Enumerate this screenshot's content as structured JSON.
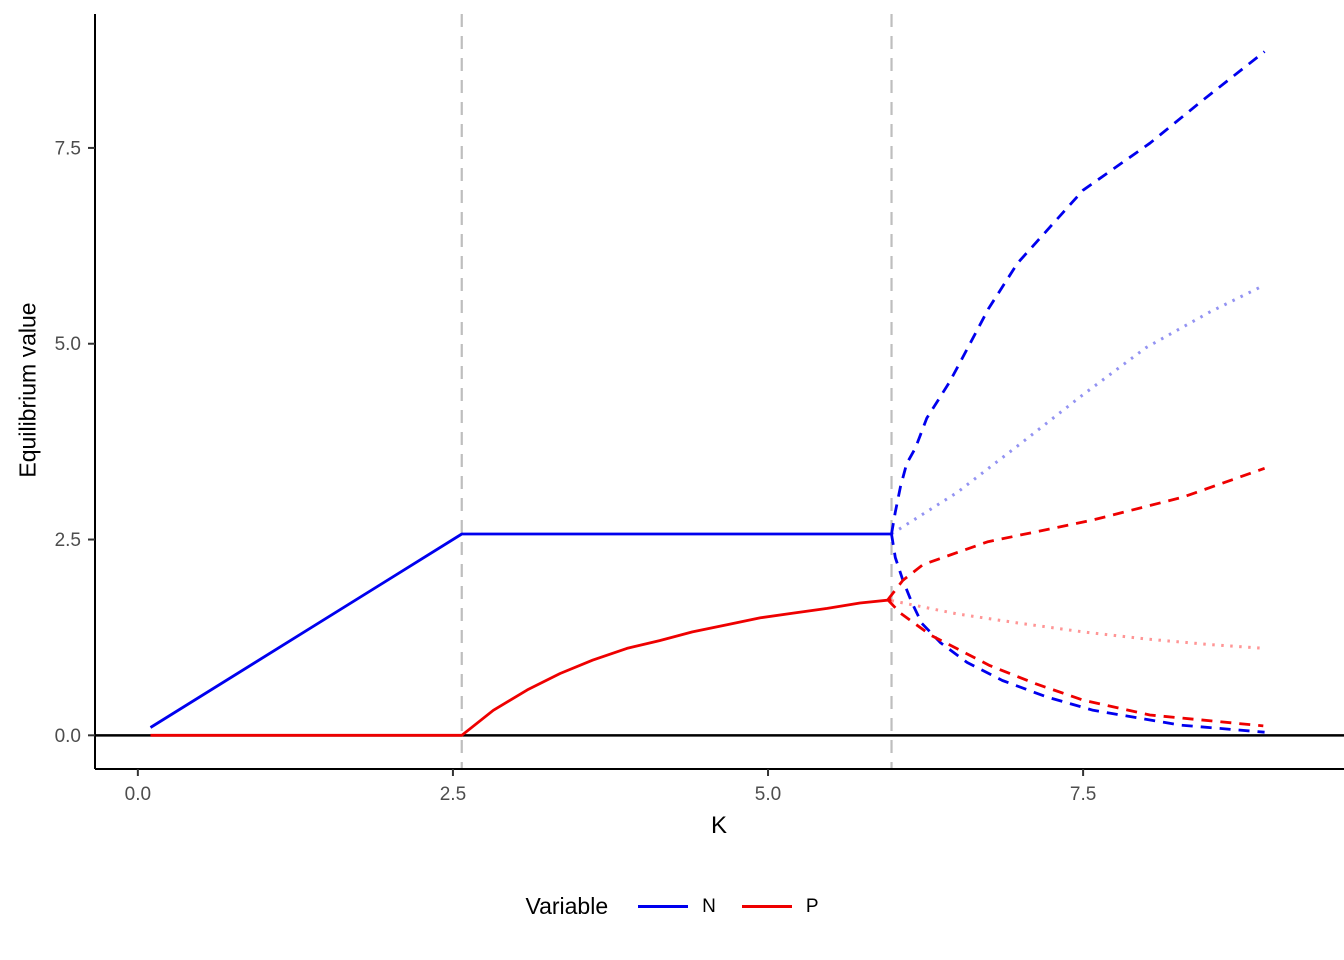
{
  "chart_data": {
    "type": "line",
    "title": "",
    "xlabel": "K",
    "ylabel": "Equilibrium value",
    "grid": false,
    "background": "#ffffff",
    "x_domain": [
      -0.34,
      9.57
    ],
    "y_domain": [
      -0.43,
      9.21
    ],
    "x_ticks": [
      0.0,
      2.5,
      5.0,
      7.5
    ],
    "x_tick_labels": [
      "0.0",
      "2.5",
      "5.0",
      "7.5"
    ],
    "y_ticks": [
      0.0,
      2.5,
      5.0,
      7.5
    ],
    "y_tick_labels": [
      "0.0",
      "2.5",
      "5.0",
      "7.5"
    ],
    "tick_label_color": "#4D4D4D",
    "axis_color": "#000000",
    "legend": {
      "title": "Variable",
      "position": "bottom",
      "entries": [
        {
          "label": "N",
          "color": "#0000EE"
        },
        {
          "label": "P",
          "color": "#EE0000"
        }
      ]
    },
    "annotations": {
      "hline": {
        "y": 0,
        "color": "#000000"
      },
      "vlines": [
        {
          "x": 2.57,
          "color": "#BEBEBE",
          "style": "dashed"
        },
        {
          "x": 5.98,
          "color": "#BEBEBE",
          "style": "dashed"
        }
      ]
    },
    "series": [
      {
        "name": "N stable equilibrium",
        "variable": "N",
        "color": "#0000EE",
        "linetype": "solid",
        "points": [
          [
            0.1,
            0.1
          ],
          [
            2.57,
            2.57
          ],
          [
            5.98,
            2.57
          ]
        ]
      },
      {
        "name": "P stable equilibrium",
        "variable": "P",
        "color": "#EE0000",
        "linetype": "solid",
        "points": [
          [
            0.1,
            0.0
          ],
          [
            2.57,
            0.0
          ],
          [
            2.82,
            0.32
          ],
          [
            3.09,
            0.58
          ],
          [
            3.35,
            0.79
          ],
          [
            3.61,
            0.96
          ],
          [
            3.88,
            1.11
          ],
          [
            4.14,
            1.21
          ],
          [
            4.4,
            1.32
          ],
          [
            4.67,
            1.41
          ],
          [
            4.94,
            1.5
          ],
          [
            5.2,
            1.56
          ],
          [
            5.47,
            1.62
          ],
          [
            5.73,
            1.69
          ],
          [
            5.98,
            1.73
          ]
        ]
      },
      {
        "name": "N unstable equilibrium",
        "variable": "N",
        "color": "#9393F2",
        "linetype": "dotted",
        "points": [
          [
            5.98,
            2.57
          ],
          [
            6.5,
            3.1
          ],
          [
            7.0,
            3.72
          ],
          [
            7.5,
            4.35
          ],
          [
            8.0,
            4.95
          ],
          [
            8.5,
            5.4
          ],
          [
            8.94,
            5.75
          ]
        ]
      },
      {
        "name": "P unstable equilibrium",
        "variable": "P",
        "color": "#FF9595",
        "linetype": "dotted",
        "points": [
          [
            5.98,
            1.72
          ],
          [
            6.5,
            1.55
          ],
          [
            7.0,
            1.43
          ],
          [
            7.5,
            1.32
          ],
          [
            8.0,
            1.23
          ],
          [
            8.5,
            1.16
          ],
          [
            8.94,
            1.11
          ]
        ]
      },
      {
        "name": "N limit cycle maximum",
        "variable": "N",
        "color": "#0000EE",
        "linetype": "dashed",
        "points": [
          [
            5.98,
            2.57
          ],
          [
            6.01,
            2.85
          ],
          [
            6.05,
            3.17
          ],
          [
            6.1,
            3.47
          ],
          [
            6.17,
            3.67
          ],
          [
            6.26,
            4.05
          ],
          [
            6.35,
            4.28
          ],
          [
            6.44,
            4.51
          ],
          [
            6.52,
            4.75
          ],
          [
            6.75,
            5.45
          ],
          [
            6.98,
            6.03
          ],
          [
            7.5,
            6.96
          ],
          [
            8.03,
            7.56
          ],
          [
            8.45,
            8.11
          ],
          [
            8.94,
            8.73
          ]
        ]
      },
      {
        "name": "N limit cycle minimum",
        "variable": "N",
        "color": "#0000EE",
        "linetype": "dashed",
        "points": [
          [
            5.98,
            2.57
          ],
          [
            6.01,
            2.27
          ],
          [
            6.07,
            1.98
          ],
          [
            6.14,
            1.7
          ],
          [
            6.22,
            1.43
          ],
          [
            6.37,
            1.18
          ],
          [
            6.58,
            0.93
          ],
          [
            6.86,
            0.7
          ],
          [
            7.21,
            0.49
          ],
          [
            7.58,
            0.32
          ],
          [
            8.27,
            0.13
          ],
          [
            8.94,
            0.04
          ]
        ]
      },
      {
        "name": "P limit cycle maximum",
        "variable": "P",
        "color": "#EE0000",
        "linetype": "dashed",
        "points": [
          [
            5.95,
            1.73
          ],
          [
            6.07,
            1.98
          ],
          [
            6.23,
            2.18
          ],
          [
            6.74,
            2.47
          ],
          [
            7.58,
            2.75
          ],
          [
            8.29,
            3.04
          ],
          [
            8.94,
            3.41
          ]
        ]
      },
      {
        "name": "P limit cycle minimum",
        "variable": "P",
        "color": "#EE0000",
        "linetype": "dashed",
        "points": [
          [
            5.95,
            1.73
          ],
          [
            6.05,
            1.56
          ],
          [
            6.29,
            1.28
          ],
          [
            6.52,
            1.09
          ],
          [
            6.76,
            0.89
          ],
          [
            7.12,
            0.66
          ],
          [
            7.5,
            0.45
          ],
          [
            8.03,
            0.26
          ],
          [
            8.93,
            0.12
          ]
        ]
      }
    ]
  }
}
